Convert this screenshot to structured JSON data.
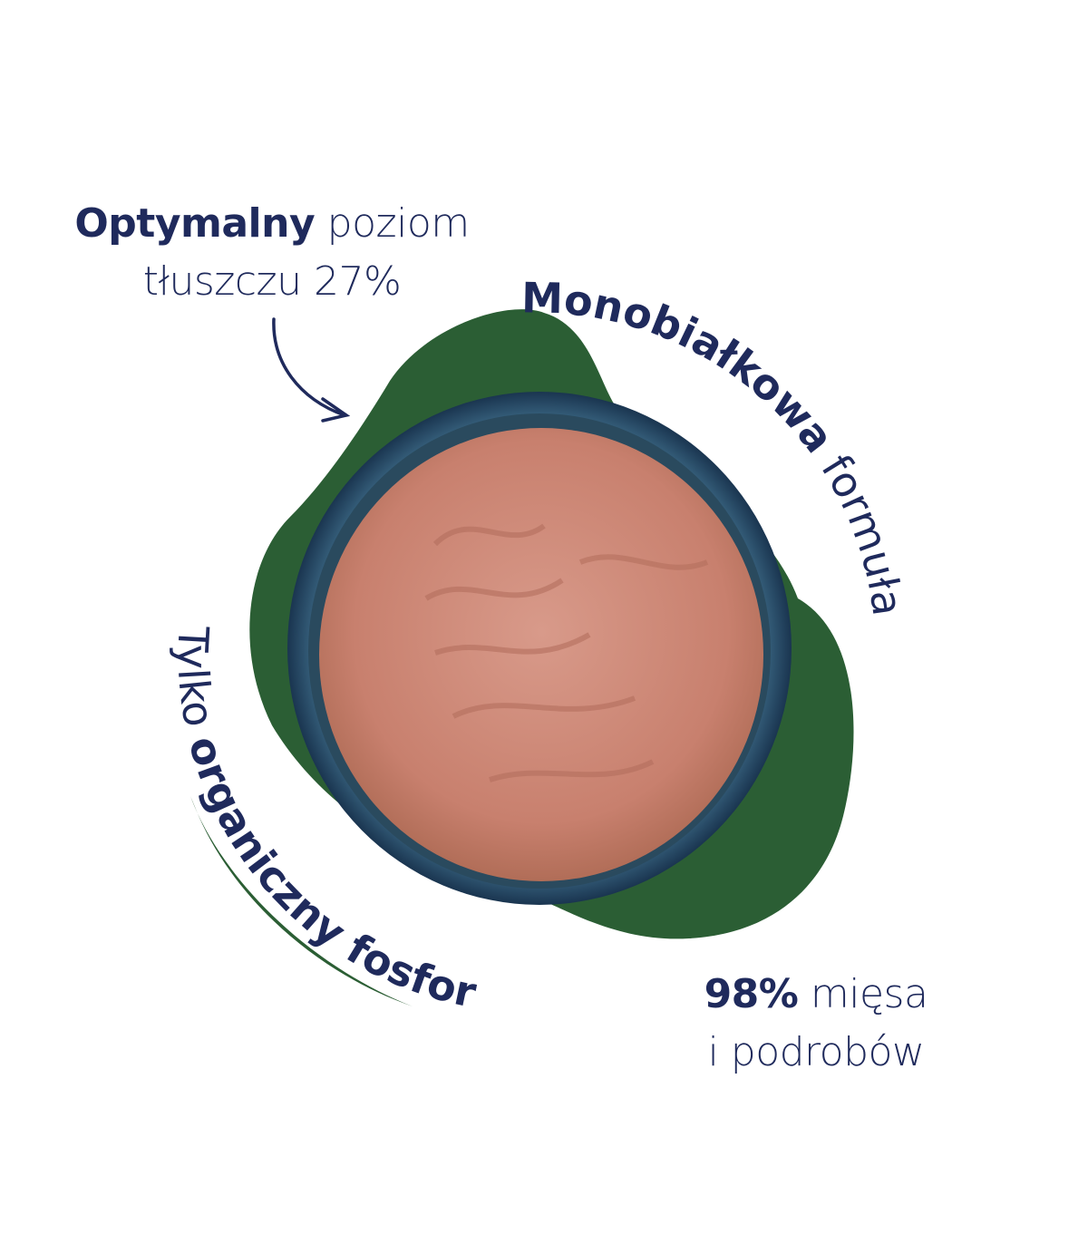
{
  "colors": {
    "text": "#1f2a5c",
    "green": "#2b5e34",
    "bowl": "#1e3d58",
    "meat": "#c98574"
  },
  "fat": {
    "bold": "Optymalny",
    "rest": " poziom",
    "line2": "tłuszczu 27%"
  },
  "protein": {
    "bold": "Monobiałkowa",
    "rest": " formuła"
  },
  "phosphorus": {
    "pre": "Tylko ",
    "bold": "organiczny fosfor"
  },
  "meat": {
    "bold": "98%",
    "rest": " mięsa",
    "line2": "i podrobów"
  },
  "icons": {
    "arrow": "curved-arrow-icon",
    "brush": "brush-stroke-underline"
  }
}
